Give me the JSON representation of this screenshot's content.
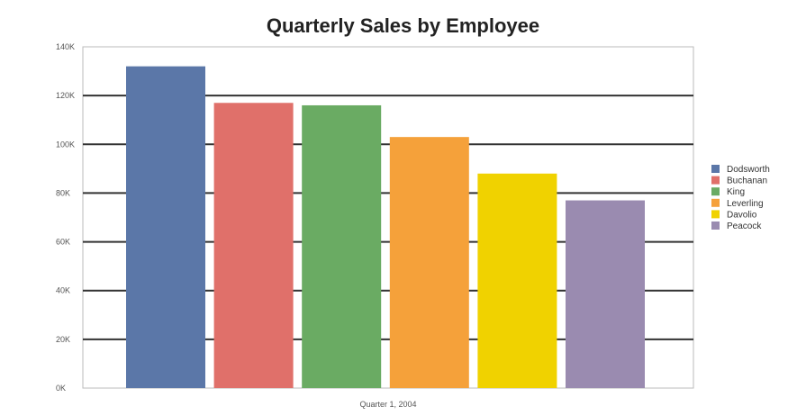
{
  "chart_data": {
    "type": "bar",
    "title": "Quarterly Sales by Employee",
    "xlabel": "Quarter 1, 2004",
    "ylabel": "",
    "ylim": [
      0,
      140
    ],
    "yticks": [
      0,
      20,
      40,
      60,
      80,
      100,
      120,
      140
    ],
    "ytick_labels": [
      "0K",
      "20K",
      "40K",
      "60K",
      "80K",
      "100K",
      "120K",
      "140K"
    ],
    "grid": true,
    "legend_position": "right",
    "categories": [
      "Quarter 1, 2004"
    ],
    "series": [
      {
        "name": "Dodsworth",
        "values": [
          132
        ],
        "color": "#5b77a8"
      },
      {
        "name": "Buchanan",
        "values": [
          117
        ],
        "color": "#e0706a"
      },
      {
        "name": "King",
        "values": [
          116
        ],
        "color": "#6aab63"
      },
      {
        "name": "Leverling",
        "values": [
          103
        ],
        "color": "#f5a13a"
      },
      {
        "name": "Davolio",
        "values": [
          88
        ],
        "color": "#f0d200"
      },
      {
        "name": "Peacock",
        "values": [
          77
        ],
        "color": "#9a8bb0"
      }
    ]
  }
}
